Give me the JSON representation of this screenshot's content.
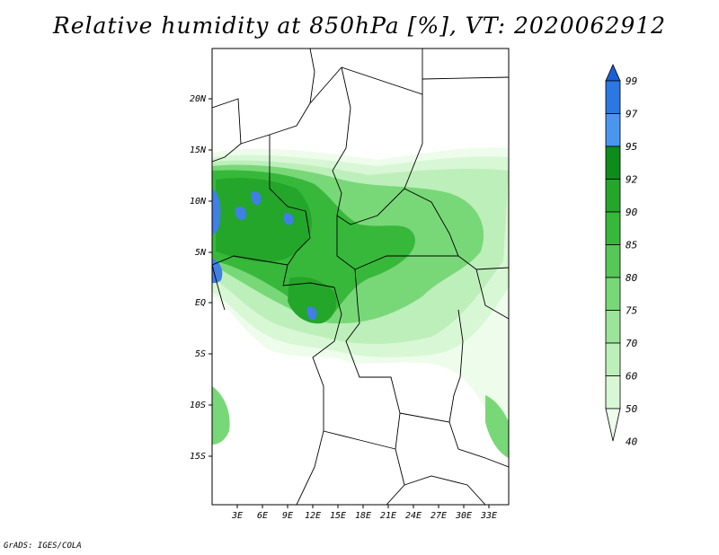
{
  "title": "Relative humidity at 850hPa [%], VT: 2020062912",
  "credit": "GrADS: IGES/COLA",
  "map": {
    "lat_labels": [
      "20N",
      "15N",
      "10N",
      "5N",
      "EQ",
      "5S",
      "10S",
      "15S"
    ],
    "lon_labels": [
      "3E",
      "6E",
      "9E",
      "12E",
      "15E",
      "18E",
      "21E",
      "24E",
      "27E",
      "30E",
      "33E"
    ]
  },
  "colorbar": {
    "levels": [
      "99",
      "97",
      "95",
      "92",
      "90",
      "85",
      "80",
      "75",
      "70",
      "60",
      "50",
      "40"
    ],
    "colors": [
      "#1a5fd6",
      "#2a78e0",
      "#4a96ee",
      "#0e8c1a",
      "#24a62a",
      "#38b83a",
      "#55c855",
      "#78d878",
      "#9ce49a",
      "#bdefba",
      "#d8f7d5",
      "#eefcec"
    ]
  },
  "palette": {
    "very_light": "#eefcec",
    "light": "#d8f7d5",
    "light_mid": "#bdefba",
    "mid": "#78d878",
    "dark": "#38b83a",
    "darker": "#24a62a",
    "blue": "#3f7fe6"
  }
}
